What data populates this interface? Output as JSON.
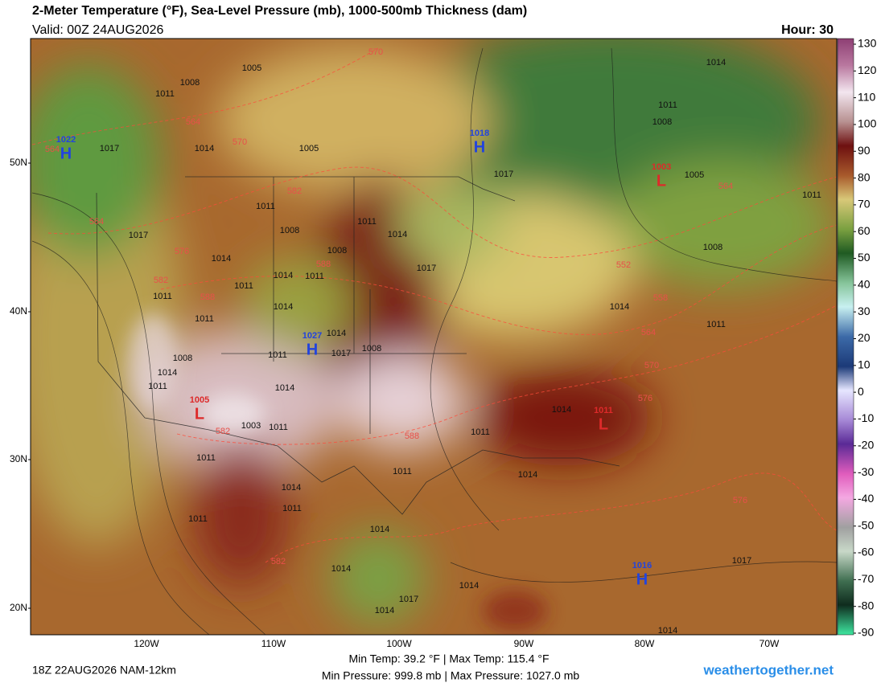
{
  "header": {
    "title": "2-Meter Temperature (°F), Sea-Level Pressure (mb), 1000-500mb Thickness (dam)",
    "valid": "Valid: 00Z 24AUG2026",
    "hour": "Hour: 30"
  },
  "colorbar": {
    "ticks": [
      130,
      120,
      110,
      100,
      90,
      80,
      70,
      60,
      50,
      40,
      30,
      20,
      10,
      0,
      -10,
      -20,
      -30,
      -40,
      -50,
      -60,
      -70,
      -80,
      -90
    ]
  },
  "map": {
    "lat_labels": [
      "50N",
      "40N",
      "30N",
      "20N"
    ],
    "lon_labels": [
      "120W",
      "110W",
      "100W",
      "90W",
      "80W",
      "70W"
    ],
    "centers": [
      {
        "letter": "H",
        "value": 1022
      },
      {
        "letter": "H",
        "value": 1018
      },
      {
        "letter": "H",
        "value": 1027
      },
      {
        "letter": "H",
        "value": 1016
      },
      {
        "letter": "L",
        "value": 1003
      },
      {
        "letter": "L",
        "value": 1011
      },
      {
        "letter": "L",
        "value": 1005
      }
    ],
    "isobar_labels": [
      1005,
      1008,
      1011,
      1017,
      1014,
      1005,
      1017,
      1014,
      1011,
      1008,
      1005,
      1011,
      1008,
      1011,
      1008,
      1011,
      1014,
      1017,
      1008,
      1014,
      1017,
      1014,
      1011,
      1011,
      1011,
      1011,
      1014,
      1014,
      1017,
      1008,
      1014,
      1011,
      1011,
      1008,
      1014,
      1011,
      1014,
      1003,
      1011,
      1011,
      1014,
      1011,
      1014,
      1011,
      1014,
      1011,
      1014,
      1011,
      1014,
      1014,
      1017,
      1017,
      1014,
      1014
    ],
    "thickness_labels": [
      570,
      564,
      570,
      564,
      582,
      564,
      576,
      588,
      582,
      588,
      552,
      558,
      564,
      570,
      576,
      588,
      582,
      576,
      582,
      564
    ]
  },
  "footer": {
    "run": "18Z 22AUG2026 NAM-12km",
    "temps": "Min Temp:  39.2 °F | Max Temp: 115.4 °F",
    "pressures": "Min Pressure: 999.8 mb | Max Pressure: 1027.0 mb",
    "site": "weathertogether.net"
  }
}
